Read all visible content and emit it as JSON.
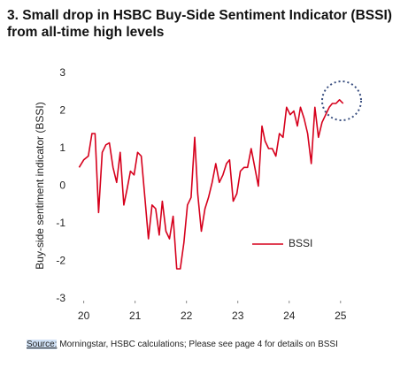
{
  "chart_data": {
    "type": "line",
    "title": "3. Small drop in HSBC Buy-Side Sentiment Indicator (BSSI) from all-time high levels",
    "y_label": "Buy-side sentiment indicator (BSSI)",
    "x": [
      19.91,
      20.0,
      20.09,
      20.16,
      20.22,
      20.29,
      20.36,
      20.43,
      20.5,
      20.57,
      20.64,
      20.71,
      20.78,
      20.84,
      20.91,
      20.98,
      21.05,
      21.12,
      21.19,
      21.26,
      21.33,
      21.4,
      21.47,
      21.53,
      21.6,
      21.67,
      21.74,
      21.81,
      21.88,
      21.95,
      22.02,
      22.09,
      22.16,
      22.22,
      22.29,
      22.36,
      22.43,
      22.5,
      22.57,
      22.64,
      22.71,
      22.78,
      22.84,
      22.91,
      22.98,
      23.05,
      23.12,
      23.19,
      23.26,
      23.33,
      23.4,
      23.47,
      23.53,
      23.6,
      23.67,
      23.74,
      23.81,
      23.88,
      23.95,
      24.02,
      24.09,
      24.16,
      24.22,
      24.29,
      24.36,
      24.43,
      24.5,
      24.57,
      24.64,
      24.71,
      24.78,
      24.84,
      24.91,
      24.98,
      25.05
    ],
    "series": [
      {
        "name": "BSSI",
        "color": "#d6001c",
        "values": [
          0.5,
          0.7,
          0.8,
          1.4,
          1.4,
          -0.7,
          0.9,
          1.1,
          1.15,
          0.5,
          0.1,
          0.9,
          -0.5,
          -0.1,
          0.4,
          0.3,
          0.9,
          0.8,
          -0.3,
          -1.4,
          -0.5,
          -0.6,
          -1.3,
          -0.4,
          -1.2,
          -1.4,
          -0.8,
          -2.2,
          -2.2,
          -1.5,
          -0.5,
          -0.3,
          1.3,
          -0.2,
          -1.2,
          -0.6,
          -0.3,
          0.1,
          0.6,
          0.1,
          0.3,
          0.6,
          0.7,
          -0.4,
          -0.2,
          0.4,
          0.5,
          0.5,
          1.0,
          0.5,
          0.0,
          1.6,
          1.2,
          1.0,
          1.0,
          0.8,
          1.4,
          1.3,
          2.1,
          1.9,
          2.0,
          1.6,
          2.1,
          1.8,
          1.4,
          0.6,
          2.1,
          1.3,
          1.7,
          1.9,
          2.1,
          2.2,
          2.2,
          2.3,
          2.2
        ]
      }
    ],
    "xlim": [
      19.8,
      25.4
    ],
    "xticks": [
      20,
      21,
      22,
      23,
      24,
      25
    ],
    "ylim": [
      -3,
      3
    ],
    "yticks": [
      3,
      2,
      1,
      0,
      -1,
      -2,
      -3
    ],
    "grid": false,
    "source_label": "Source:",
    "source": "Morningstar, HSBC calculations; Please see page 4 for details on BSSI"
  }
}
